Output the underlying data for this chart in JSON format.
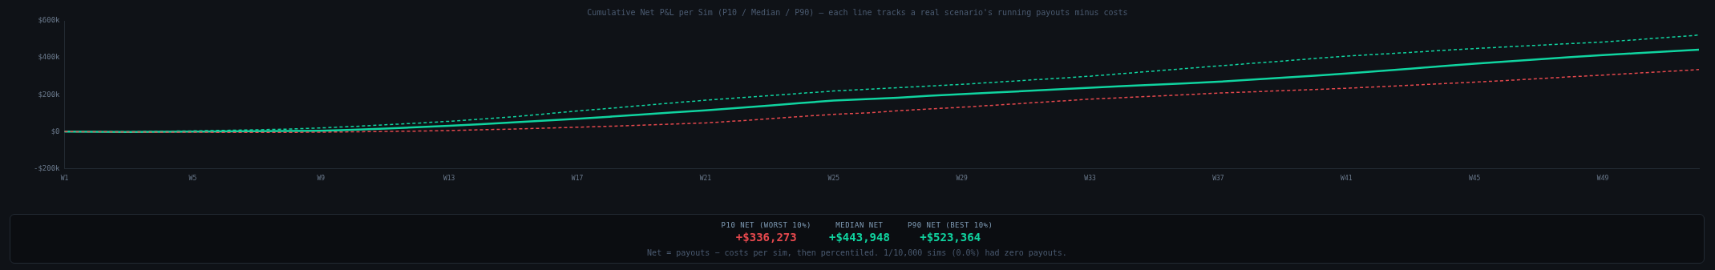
{
  "chart_data": {
    "type": "line",
    "title": "Cumulative Net P&L per Sim (P10 / Median / P90) — each line tracks a real scenario's running payouts minus costs",
    "categories": [
      "W1",
      null,
      null,
      null,
      "W5",
      null,
      null,
      null,
      "W9",
      null,
      null,
      null,
      "W13",
      null,
      null,
      null,
      "W17",
      null,
      null,
      null,
      "W21",
      null,
      null,
      null,
      "W25",
      null,
      null,
      null,
      "W29",
      null,
      null,
      null,
      "W33",
      null,
      null,
      null,
      "W37",
      null,
      null,
      null,
      "W41",
      null,
      null,
      null,
      "W45",
      null,
      null,
      null,
      "W49",
      null,
      null,
      null
    ],
    "series": [
      {
        "color": "#e5484d",
        "line_style": "dashed",
        "values": [
          0,
          -1000,
          -2000,
          -3000,
          -3000,
          -4000,
          -4000,
          -4000,
          -3000,
          -1000,
          1000,
          3000,
          6000,
          10000,
          14000,
          19000,
          24000,
          29000,
          35000,
          41000,
          47000,
          58000,
          70000,
          82000,
          94000,
          101000,
          113000,
          123000,
          132000,
          143000,
          154000,
          165000,
          176000,
          184000,
          192000,
          200000,
          209000,
          215000,
          222000,
          228000,
          235000,
          243000,
          251000,
          260000,
          268000,
          277000,
          287000,
          297000,
          306000,
          316000,
          326000,
          336000
        ]
      },
      {
        "color": "#10d4a0",
        "line_style": "solid",
        "values": [
          0,
          -1000,
          -2000,
          -1000,
          0,
          1000,
          2000,
          3000,
          5000,
          10000,
          16000,
          24000,
          32000,
          40000,
          50000,
          60000,
          70000,
          81000,
          92000,
          104000,
          115000,
          128000,
          141000,
          155000,
          168000,
          176000,
          184000,
          194000,
          203000,
          212000,
          220000,
          229000,
          238000,
          246000,
          254000,
          262000,
          270000,
          281000,
          292000,
          303000,
          315000,
          328000,
          341000,
          355000,
          368000,
          380000,
          392000,
          404000,
          415000,
          424000,
          434000,
          444000
        ]
      },
      {
        "color": "#10d4a0",
        "line_style": "dashed",
        "values": [
          0,
          0,
          0,
          2000,
          4000,
          7000,
          10000,
          14000,
          20000,
          28000,
          37000,
          46000,
          56000,
          68000,
          80000,
          96000,
          112000,
          126000,
          141000,
          156000,
          170000,
          183000,
          195000,
          208000,
          220000,
          229000,
          238000,
          247000,
          256000,
          267000,
          278000,
          289000,
          300000,
          314000,
          328000,
          342000,
          356000,
          369000,
          382000,
          396000,
          409000,
          419000,
          429000,
          440000,
          450000,
          459000,
          468000,
          477000,
          485000,
          497000,
          510000,
          523000
        ]
      }
    ],
    "ylim": [
      -200000,
      600000
    ],
    "yticks": [
      {
        "value": -200000,
        "label": "-$200k"
      },
      {
        "value": 0,
        "label": "$0"
      },
      {
        "value": 200000,
        "label": "$200k"
      },
      {
        "value": 400000,
        "label": "$400k"
      },
      {
        "value": 600000,
        "label": "$600k"
      }
    ],
    "grid": false,
    "legend": false,
    "marker": "none",
    "annotations": [
      "P10 NET (WORST 10%)",
      "+$336,273",
      "MEDIAN NET",
      "+$443,948",
      "P90 NET (BEST 10%)",
      "+$523,364",
      "Net = payouts − costs per sim, then percentiled. 1/10,000 sims (0.0%) had zero payouts."
    ]
  }
}
